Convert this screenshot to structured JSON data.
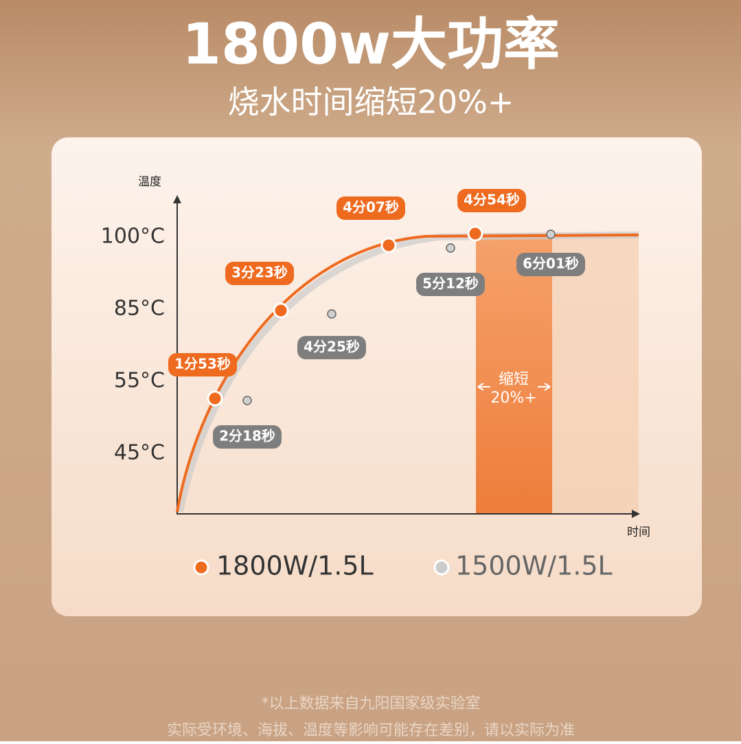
{
  "header": {
    "title": "1800w大功率",
    "subtitle": "烧水时间缩短20%+"
  },
  "chart": {
    "y_axis_label": "温度",
    "x_axis_label": "时间",
    "y_ticks": [
      "100°C",
      "85°C",
      "55°C",
      "45°C"
    ],
    "series": [
      {
        "name": "1800W/1.5L",
        "points": [
          "1分53秒",
          "3分23秒",
          "4分07秒",
          "4分54秒"
        ]
      },
      {
        "name": "1500W/1.5L",
        "points": [
          "2分18秒",
          "4分25秒",
          "5分12秒",
          "6分01秒"
        ]
      }
    ],
    "highlight": {
      "label": "缩短",
      "value": "20%+"
    }
  },
  "footer": {
    "note": "*以上数据来自九阳国家级实验室",
    "disclaimer": "实际受环境、海拔、温度等影响可能存在差别，请以实际为准"
  }
}
